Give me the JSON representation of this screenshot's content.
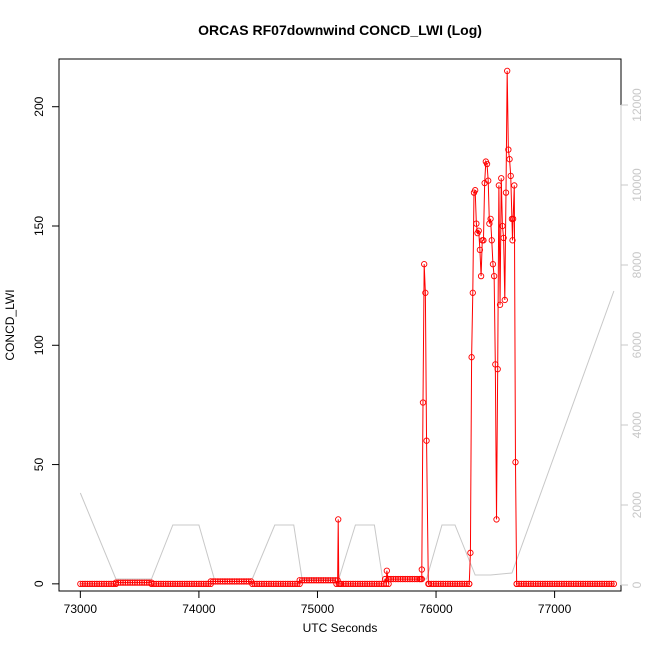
{
  "chart_data": {
    "type": "line",
    "title": "ORCAS RF07downwind CONCD_LWI (Log)",
    "xlabel": "UTC Seconds",
    "ylabel": "CONCD_LWI",
    "xlim": [
      72820,
      77560
    ],
    "ylim": [
      -3,
      220
    ],
    "y2lim": [
      -150,
      13150
    ],
    "x_ticks": [
      "73000",
      "74000",
      "75000",
      "76000",
      "77000"
    ],
    "y_ticks": [
      "0",
      "50",
      "100",
      "150",
      "200"
    ],
    "y2_ticks": [
      "0",
      "2000",
      "4000",
      "6000",
      "8000",
      "10000",
      "12000"
    ],
    "grid": false,
    "colors": {
      "primary": "#ff0000",
      "secondary": "#c8c8c8"
    },
    "series": [
      {
        "color": "#ff0000",
        "markers": "open-circle",
        "segments": [
          {
            "x": [
              73000,
              73300
            ],
            "y": [
              0,
              0
            ],
            "step": 20
          },
          {
            "x": [
              73300,
              73600
            ],
            "y": [
              0.5,
              0.5
            ],
            "step": 20
          },
          {
            "x": [
              73600,
              74100
            ],
            "y": [
              0,
              0
            ],
            "step": 20
          },
          {
            "x": [
              74100,
              74450
            ],
            "y": [
              1,
              1
            ],
            "step": 20
          },
          {
            "x": [
              74450,
              74850
            ],
            "y": [
              0,
              0
            ],
            "step": 20
          },
          {
            "x": [
              74850,
              75180
            ],
            "y": [
              1.5,
              1.5
            ],
            "step": 20
          },
          {
            "x": [
              75180,
              75600
            ],
            "y": [
              0,
              0
            ],
            "step": 20
          },
          {
            "x": [
              75600,
              75880
            ],
            "y": [
              2,
              2
            ],
            "step": 20
          },
          {
            "x": [
              75940,
              76280
            ],
            "y": [
              0,
              0
            ],
            "step": 20
          },
          {
            "x": [
              76680,
              77500
            ],
            "y": [
              0,
              0
            ],
            "step": 20
          }
        ],
        "points": [
          [
            75160,
            0
          ],
          [
            75175,
            27
          ],
          [
            75190,
            0
          ],
          [
            75570,
            2
          ],
          [
            75585,
            5.5
          ],
          [
            75600,
            2
          ],
          [
            75870,
            2
          ],
          [
            75880,
            6
          ],
          [
            75890,
            76
          ],
          [
            75900,
            134
          ],
          [
            75910,
            122
          ],
          [
            75920,
            60
          ],
          [
            75935,
            0
          ],
          [
            76280,
            0
          ],
          [
            76290,
            13
          ],
          [
            76300,
            95
          ],
          [
            76310,
            122
          ],
          [
            76320,
            164
          ],
          [
            76330,
            165
          ],
          [
            76340,
            151
          ],
          [
            76350,
            147
          ],
          [
            76360,
            148
          ],
          [
            76370,
            140
          ],
          [
            76380,
            129
          ],
          [
            76390,
            144
          ],
          [
            76400,
            144
          ],
          [
            76410,
            168
          ],
          [
            76420,
            177
          ],
          [
            76430,
            176
          ],
          [
            76440,
            169
          ],
          [
            76450,
            151
          ],
          [
            76460,
            153
          ],
          [
            76470,
            144
          ],
          [
            76480,
            134
          ],
          [
            76490,
            129
          ],
          [
            76500,
            92
          ],
          [
            76510,
            27
          ],
          [
            76520,
            90
          ],
          [
            76530,
            167
          ],
          [
            76540,
            117
          ],
          [
            76550,
            170
          ],
          [
            76560,
            150
          ],
          [
            76570,
            145
          ],
          [
            76580,
            119
          ],
          [
            76590,
            164
          ],
          [
            76600,
            215
          ],
          [
            76610,
            182
          ],
          [
            76620,
            178
          ],
          [
            76630,
            171
          ],
          [
            76640,
            153
          ],
          [
            76645,
            144
          ],
          [
            76650,
            153
          ],
          [
            76660,
            167
          ],
          [
            76670,
            51
          ],
          [
            76680,
            0
          ]
        ]
      },
      {
        "color": "#c8c8c8",
        "axis": "right",
        "x": [
          73000,
          73300,
          73600,
          73780,
          74000,
          74130,
          74450,
          74640,
          74800,
          74870,
          75180,
          75320,
          75480,
          75550,
          75920,
          76050,
          76160,
          76330,
          76460,
          76640,
          77500
        ],
        "y": [
          2300,
          150,
          150,
          1500,
          1500,
          150,
          150,
          1500,
          1500,
          150,
          150,
          1500,
          1500,
          150,
          150,
          1500,
          1500,
          250,
          250,
          300,
          7350
        ]
      }
    ]
  }
}
